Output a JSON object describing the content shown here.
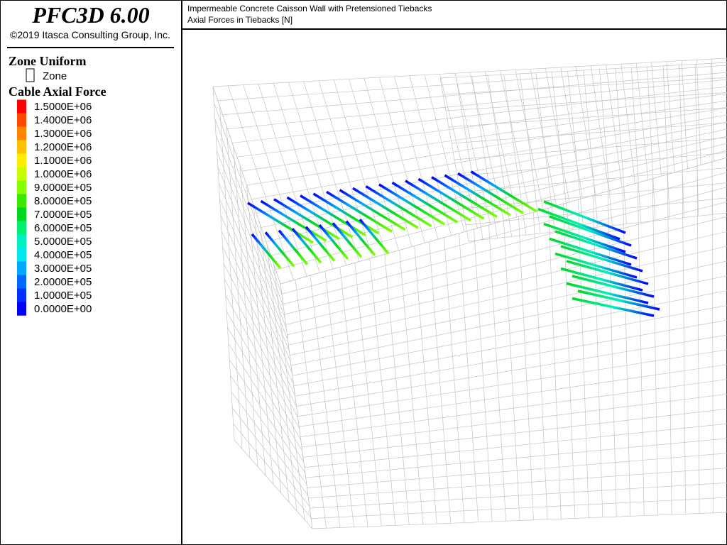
{
  "header": {
    "title": "PFC3D 6.00",
    "copyright": "©2019 Itasca Consulting Group, Inc."
  },
  "plot": {
    "title_lines": [
      "Impermeable Concrete Caisson Wall with Pretensioned Tiebacks",
      "Axial Forces in Tiebacks [N]"
    ]
  },
  "legend": {
    "zone_heading": "Zone Uniform",
    "zone_item": "Zone",
    "cable_heading": "Cable Axial Force",
    "entries": [
      {
        "label": "1.5000E+06",
        "color": "#ff0000"
      },
      {
        "label": "1.4000E+06",
        "color": "#ff4800"
      },
      {
        "label": "1.3000E+06",
        "color": "#ff8400"
      },
      {
        "label": "1.2000E+06",
        "color": "#ffc000"
      },
      {
        "label": "1.1000E+06",
        "color": "#ffee00"
      },
      {
        "label": "1.0000E+06",
        "color": "#c8ff00"
      },
      {
        "label": "9.0000E+05",
        "color": "#84ff00"
      },
      {
        "label": "8.0000E+05",
        "color": "#3ce800"
      },
      {
        "label": "7.0000E+05",
        "color": "#00d820"
      },
      {
        "label": "6.0000E+05",
        "color": "#00f070"
      },
      {
        "label": "5.0000E+05",
        "color": "#00f0c0"
      },
      {
        "label": "4.0000E+05",
        "color": "#00e8f0"
      },
      {
        "label": "3.0000E+05",
        "color": "#00a8ff"
      },
      {
        "label": "2.0000E+05",
        "color": "#0068ff"
      },
      {
        "label": "1.0000E+05",
        "color": "#0030ff"
      },
      {
        "label": "0.0000E+00",
        "color": "#0000ff"
      }
    ]
  }
}
